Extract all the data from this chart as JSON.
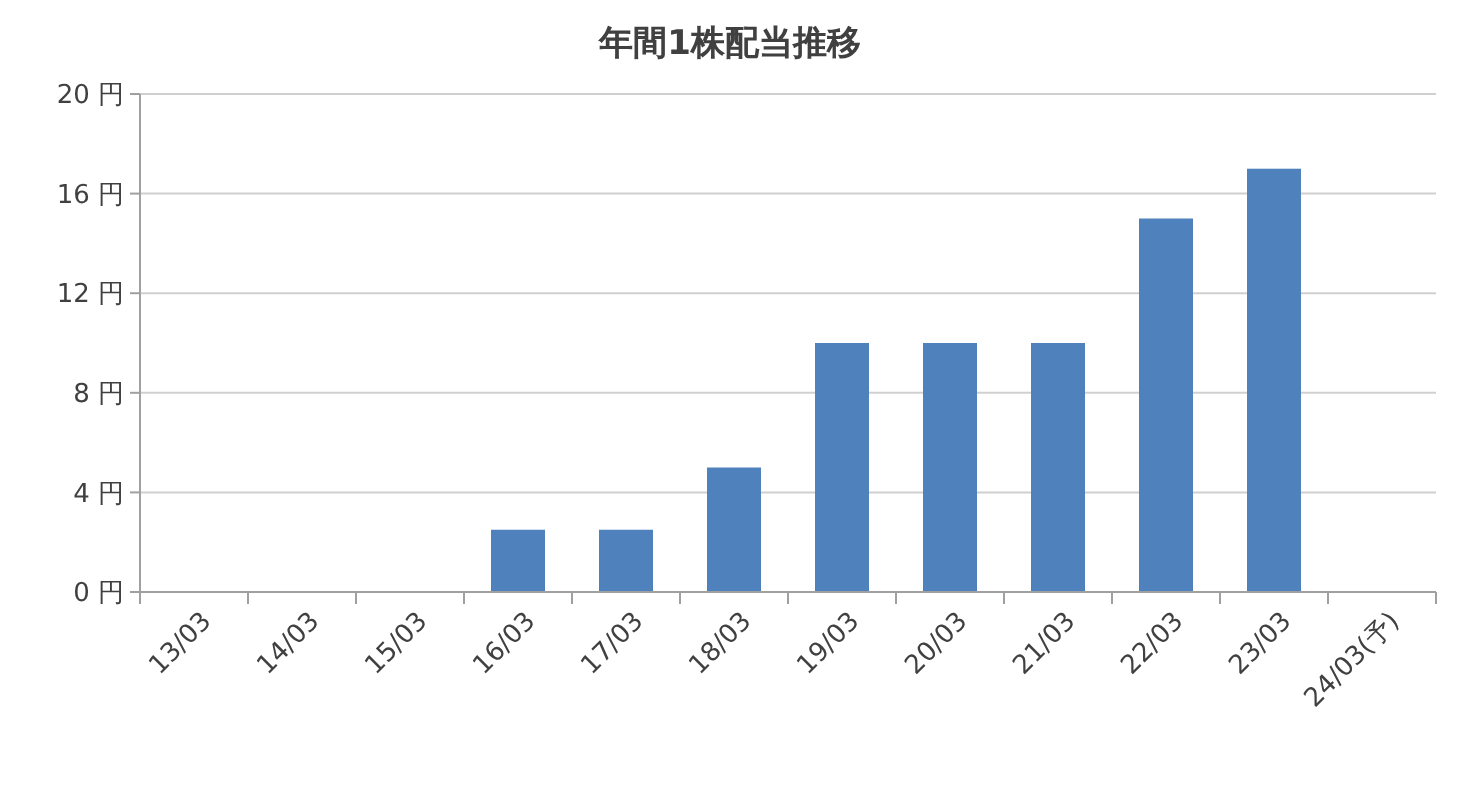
{
  "chart_data": {
    "type": "bar",
    "title": "年間1株配当推移",
    "categories": [
      "13/03",
      "14/03",
      "15/03",
      "16/03",
      "17/03",
      "18/03",
      "19/03",
      "20/03",
      "21/03",
      "22/03",
      "23/03",
      "24/03(予)"
    ],
    "values": [
      0,
      0,
      0,
      2.5,
      2.5,
      5,
      10,
      10,
      10,
      15,
      17,
      null
    ],
    "color": "#4f81bd",
    "ylim": [
      0,
      20
    ],
    "yticks": [
      {
        "value": 0,
        "label": "0 円"
      },
      {
        "value": 4,
        "label": "4 円"
      },
      {
        "value": 8,
        "label": "8 円"
      },
      {
        "value": 12,
        "label": "12 円"
      },
      {
        "value": 16,
        "label": "16 円"
      },
      {
        "value": 20,
        "label": "20 円"
      }
    ],
    "grid": "y"
  }
}
